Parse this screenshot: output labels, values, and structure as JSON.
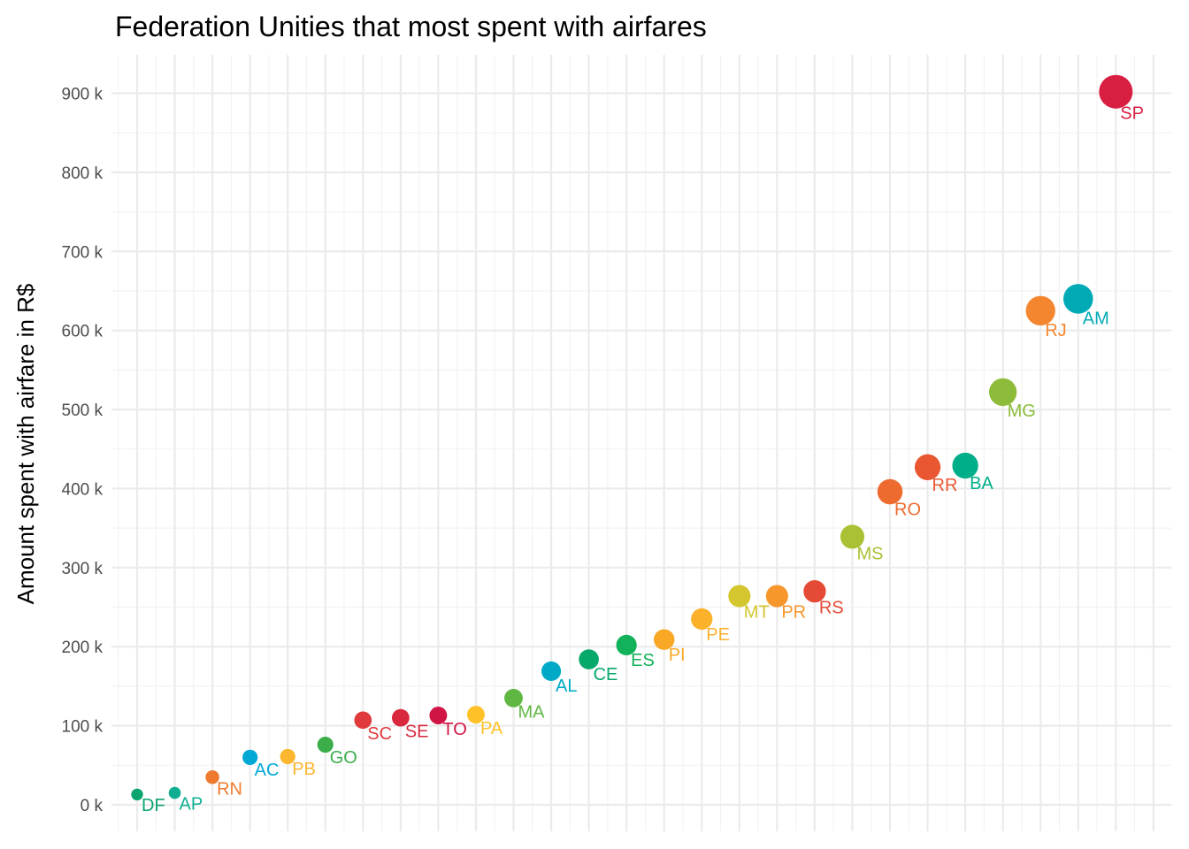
{
  "chart_data": {
    "type": "scatter",
    "title": "Federation Unities that most spent with airfares",
    "xlabel": "",
    "ylabel": "Amount spent with airfare in R$",
    "ylim": [
      0,
      900000
    ],
    "yticks": [
      0,
      100000,
      200000,
      300000,
      400000,
      500000,
      600000,
      700000,
      800000,
      900000
    ],
    "ytick_labels": [
      "0 k",
      "100 k",
      "200 k",
      "300 k",
      "400 k",
      "500 k",
      "600 k",
      "700 k",
      "800 k",
      "900 k"
    ],
    "grid": true,
    "legend": "none",
    "points": [
      {
        "label": "DF",
        "value": 13000,
        "color": "#0aa56e"
      },
      {
        "label": "AP",
        "value": 15000,
        "color": "#0fae93"
      },
      {
        "label": "RN",
        "value": 35000,
        "color": "#ee7a30"
      },
      {
        "label": "AC",
        "value": 60000,
        "color": "#00a8d6"
      },
      {
        "label": "PB",
        "value": 61000,
        "color": "#fdb62f"
      },
      {
        "label": "GO",
        "value": 76000,
        "color": "#3bae4a"
      },
      {
        "label": "SC",
        "value": 107000,
        "color": "#e03a3c"
      },
      {
        "label": "SE",
        "value": 110000,
        "color": "#d8283d"
      },
      {
        "label": "TO",
        "value": 113000,
        "color": "#d01443"
      },
      {
        "label": "PA",
        "value": 114000,
        "color": "#fec128"
      },
      {
        "label": "MA",
        "value": 135000,
        "color": "#60b843"
      },
      {
        "label": "AL",
        "value": 169000,
        "color": "#00aac7"
      },
      {
        "label": "CE",
        "value": 184000,
        "color": "#07a86a"
      },
      {
        "label": "ES",
        "value": 202000,
        "color": "#12b25a"
      },
      {
        "label": "PI",
        "value": 209000,
        "color": "#f9a826"
      },
      {
        "label": "PE",
        "value": 235000,
        "color": "#fcb12b"
      },
      {
        "label": "MT",
        "value": 264000,
        "color": "#d4c62e"
      },
      {
        "label": "PR",
        "value": 264000,
        "color": "#f7962b"
      },
      {
        "label": "RS",
        "value": 270000,
        "color": "#e54a36"
      },
      {
        "label": "MS",
        "value": 339000,
        "color": "#abc135"
      },
      {
        "label": "RO",
        "value": 396000,
        "color": "#ee6b2f"
      },
      {
        "label": "RR",
        "value": 427000,
        "color": "#e95632"
      },
      {
        "label": "BA",
        "value": 429000,
        "color": "#00ae89"
      },
      {
        "label": "MG",
        "value": 522000,
        "color": "#8cbc3a"
      },
      {
        "label": "RJ",
        "value": 625000,
        "color": "#f4862f"
      },
      {
        "label": "AM",
        "value": 640000,
        "color": "#00aab5"
      },
      {
        "label": "SP",
        "value": 902000,
        "color": "#d81e41"
      }
    ]
  }
}
